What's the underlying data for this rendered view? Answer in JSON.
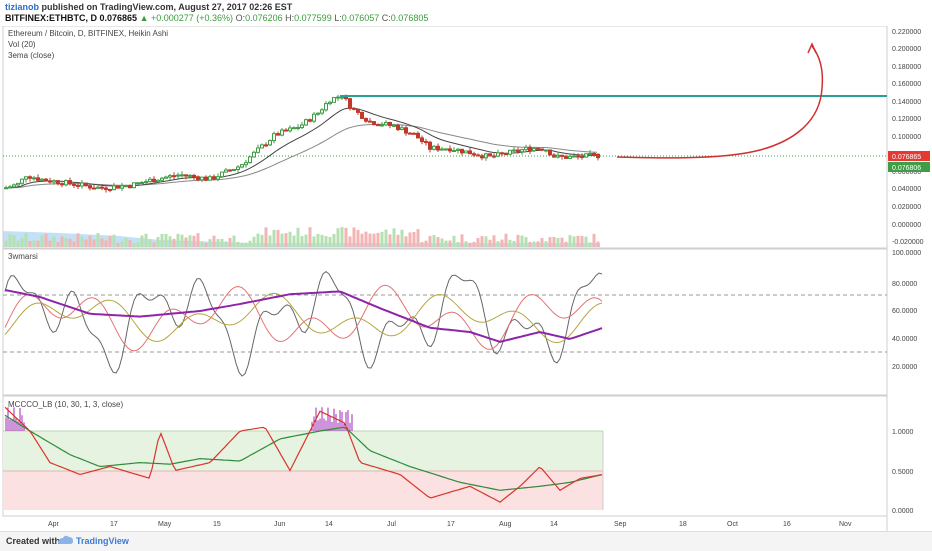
{
  "header": {
    "author": "tizianob",
    "published": "published on TradingView.com, August 27, 2017 02:26 EST",
    "symbol": "BITFINEX:ETHBTC, D",
    "last": "0.076865",
    "change": "▲ +0.000277 (+0.36%)",
    "o_label": "O:",
    "o_value": "0.076206",
    "h_label": "H:",
    "h_value": "0.077599",
    "l_label": "L:",
    "l_value": "0.076057",
    "c_label": "C:",
    "c_value": "0.076805"
  },
  "main_pane": {
    "title": "Ethereum / Bitcoin, D, BITFINEX, Heikin Ashi",
    "study1": "Vol (20)",
    "study2": "3ema (close)",
    "y_ticks": [
      "0.220000",
      "0.200000",
      "0.180000",
      "0.160000",
      "0.140000",
      "0.120000",
      "0.100000",
      "0.080000",
      "0.060000",
      "0.040000",
      "0.020000",
      "0.000000",
      "-0.020000"
    ],
    "price_tag_1": "0.076865",
    "price_tag_2": "0.076806",
    "resistance_level": 0.146
  },
  "rsi_pane": {
    "title": "3wmarsi",
    "y_ticks": [
      "100.0000",
      "80.0000",
      "60.0000",
      "40.0000",
      "20.0000"
    ]
  },
  "cco_pane": {
    "title": "MCCCO_LB (10, 30, 1, 3, close)",
    "y_ticks": [
      "1.0000",
      "0.5000",
      "0.0000"
    ]
  },
  "time_axis": {
    "labels": [
      "Apr",
      "17",
      "May",
      "15",
      "Jun",
      "14",
      "Jul",
      "17",
      "Aug",
      "14",
      "Sep",
      "18",
      "Oct",
      "16",
      "Nov"
    ]
  },
  "colors": {
    "up": "#3e9d45",
    "down": "#c0392b",
    "teal": "#2aa198",
    "forecast": "#d32f2f",
    "purple": "#8e24aa",
    "rsi_fast": "#666666",
    "green_zone": "#e6f3e1",
    "red_zone": "#fbe1e1"
  },
  "footer": {
    "created_with": "Created with",
    "brand": "TradingView"
  }
}
